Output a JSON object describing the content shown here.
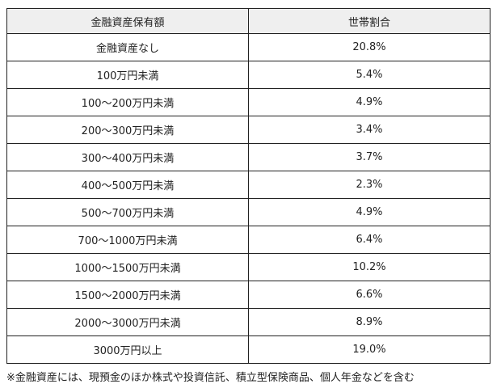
{
  "table": {
    "headers": [
      "金融資産保有額",
      "世帯割合"
    ],
    "rows": [
      [
        "金融資産なし",
        "20.8%"
      ],
      [
        "100万円未満",
        "5.4%"
      ],
      [
        "100～200万円未満",
        "4.9%"
      ],
      [
        "200～300万円未満",
        "3.4%"
      ],
      [
        "300～400万円未満",
        "3.7%"
      ],
      [
        "400～500万円未満",
        "2.3%"
      ],
      [
        "500～700万円未満",
        "4.9%"
      ],
      [
        "700～1000万円未満",
        "6.4%"
      ],
      [
        "1000～1500万円未満",
        "10.2%"
      ],
      [
        "1500～2000万円未満",
        "6.6%"
      ],
      [
        "2000～3000万円未満",
        "8.9%"
      ],
      [
        "3000万円以上",
        "19.0%"
      ]
    ]
  },
  "footnote": "※金融資産には、現預金のほか株式や投資信託、積立型保険商品、個人年金などを含む"
}
